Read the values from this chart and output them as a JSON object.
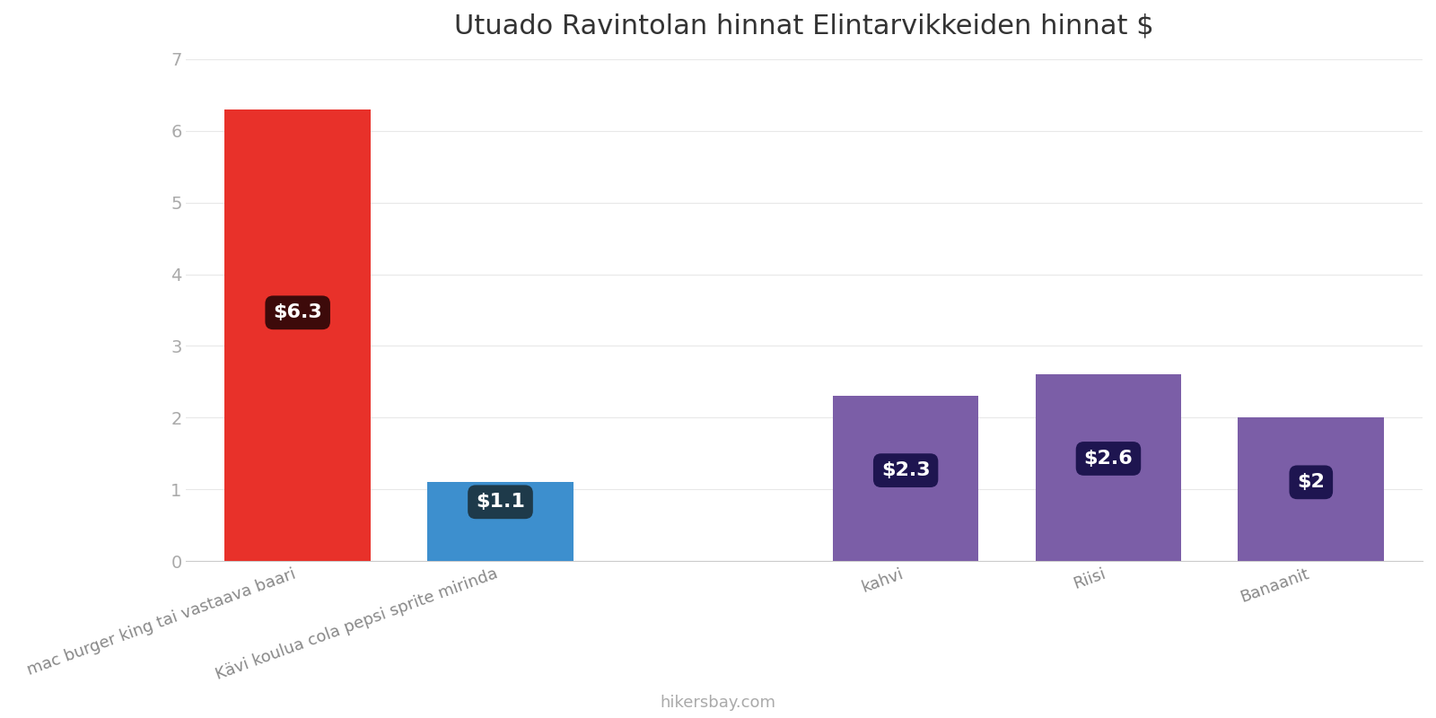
{
  "title": "Utuado Ravintolan hinnat Elintarvikkeiden hinnat $",
  "categories": [
    "mac burger king tai vastaava baari",
    "Kävi koulua cola pepsi sprite mirinda",
    "",
    "kahvi",
    "Riisi",
    "Banaanit"
  ],
  "values": [
    6.3,
    1.1,
    0,
    2.3,
    2.6,
    2.0
  ],
  "bar_colors": [
    "#e8312a",
    "#3d8fce",
    "#ffffff",
    "#7b5ea7",
    "#7b5ea7",
    "#7b5ea7"
  ],
  "label_colors": [
    "#3d0a0a",
    "#1e3a4a",
    null,
    "#1e1550",
    "#1e1550",
    "#1e1550"
  ],
  "labels": [
    "$6.3",
    "$1.1",
    null,
    "$2.3",
    "$2.6",
    "$2"
  ],
  "ylim": [
    0,
    7
  ],
  "yticks": [
    0,
    1,
    2,
    3,
    4,
    5,
    6,
    7
  ],
  "title_fontsize": 22,
  "tick_fontsize": 14,
  "label_fontsize": 16,
  "xlabel_fontsize": 13,
  "background_color": "#ffffff",
  "footer_text": "hikersbay.com"
}
